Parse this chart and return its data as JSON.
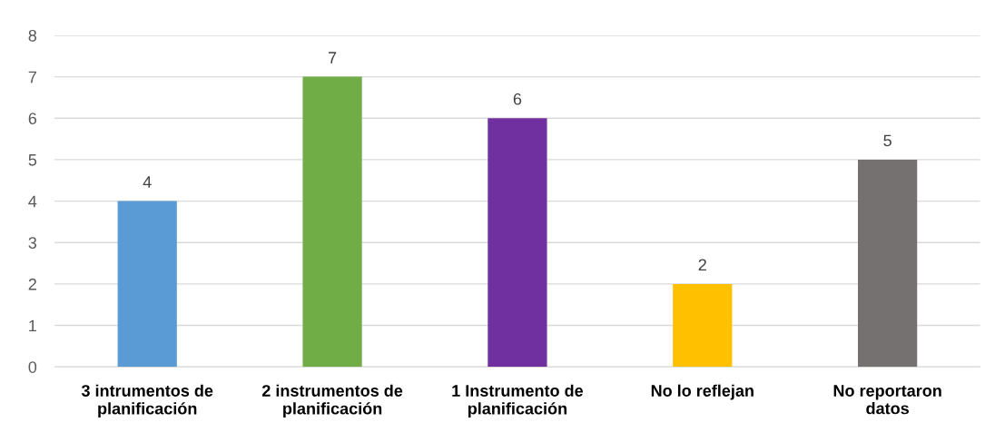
{
  "chart_data": {
    "type": "bar",
    "categories": [
      "3 intrumentos de\nplanificación",
      "2 instrumentos de\nplanificación",
      "1 Instrumento de\nplanificación",
      "No lo reflejan",
      "No reportaron\ndatos"
    ],
    "values": [
      4,
      7,
      6,
      2,
      5
    ],
    "colors": [
      "#5b9bd5",
      "#70ad47",
      "#7030a0",
      "#ffc000",
      "#767171"
    ],
    "ylim": [
      0,
      8
    ],
    "yticks": [
      0,
      1,
      2,
      3,
      4,
      5,
      6,
      7,
      8
    ],
    "grid": "y",
    "data_labels": true
  }
}
